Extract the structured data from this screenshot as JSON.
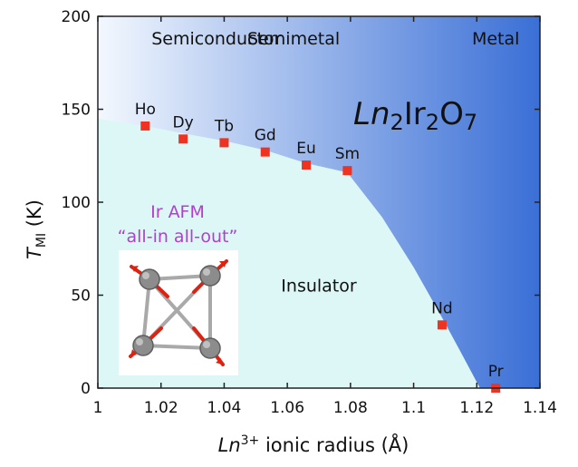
{
  "chart_data": {
    "type": "scatter",
    "title": "",
    "xlabel": {
      "italic": "Ln",
      "sup": "3+",
      "rest": " ionic radius (Å)"
    },
    "ylabel": {
      "main": "T",
      "sub": "MI",
      "rest": " (K)"
    },
    "xlim": [
      1.0,
      1.14
    ],
    "ylim": [
      0,
      200
    ],
    "x_ticks": [
      1,
      1.02,
      1.04,
      1.06,
      1.08,
      1.1,
      1.12,
      1.14
    ],
    "x_tick_labels": [
      "1",
      "1.02",
      "1.04",
      "1.06",
      "1.08",
      "1.1",
      "1.12",
      "1.14"
    ],
    "y_ticks": [
      0,
      50,
      100,
      150,
      200
    ],
    "y_tick_labels": [
      "0",
      "50",
      "100",
      "150",
      "200"
    ],
    "grid": false,
    "series": [
      {
        "points": [
          {
            "label": "Ho",
            "x": 1.015,
            "y": 141
          },
          {
            "label": "Dy",
            "x": 1.027,
            "y": 134
          },
          {
            "label": "Tb",
            "x": 1.04,
            "y": 132
          },
          {
            "label": "Gd",
            "x": 1.053,
            "y": 127
          },
          {
            "label": "Eu",
            "x": 1.066,
            "y": 120
          },
          {
            "label": "Sm",
            "x": 1.079,
            "y": 117
          },
          {
            "label": "Nd",
            "x": 1.109,
            "y": 34
          },
          {
            "label": "Pr",
            "x": 1.126,
            "y": 0
          }
        ]
      }
    ],
    "phase_boundary": [
      [
        1.0,
        145
      ],
      [
        1.015,
        141
      ],
      [
        1.027,
        137
      ],
      [
        1.04,
        133
      ],
      [
        1.053,
        128
      ],
      [
        1.066,
        121
      ],
      [
        1.079,
        116
      ],
      [
        1.09,
        92
      ],
      [
        1.1,
        65
      ],
      [
        1.109,
        38
      ],
      [
        1.116,
        16
      ],
      [
        1.121,
        0
      ]
    ],
    "region_labels": [
      {
        "text": "Semiconductor",
        "x": 1.017,
        "y": 185
      },
      {
        "text": "Semimetal",
        "x": 1.062,
        "y": 185
      },
      {
        "text": "Metal",
        "x": 1.126,
        "y": 185
      },
      {
        "text": "Insulator",
        "x": 1.07,
        "y": 52
      }
    ],
    "compound": {
      "italic": "Ln",
      "parts": [
        "2",
        "Ir",
        "2",
        "O",
        "7"
      ]
    },
    "inset": {
      "line1": "Ir AFM",
      "line2": "“all-in all-out”"
    },
    "colors": {
      "insulator_fill": "#dcf7f6",
      "metal_gradient_start": "#f3f8fe",
      "metal_gradient_end": "#3a6fd6",
      "marker": "#ee3322",
      "inset_text": "#b13fd0",
      "axis": "#222222"
    }
  }
}
